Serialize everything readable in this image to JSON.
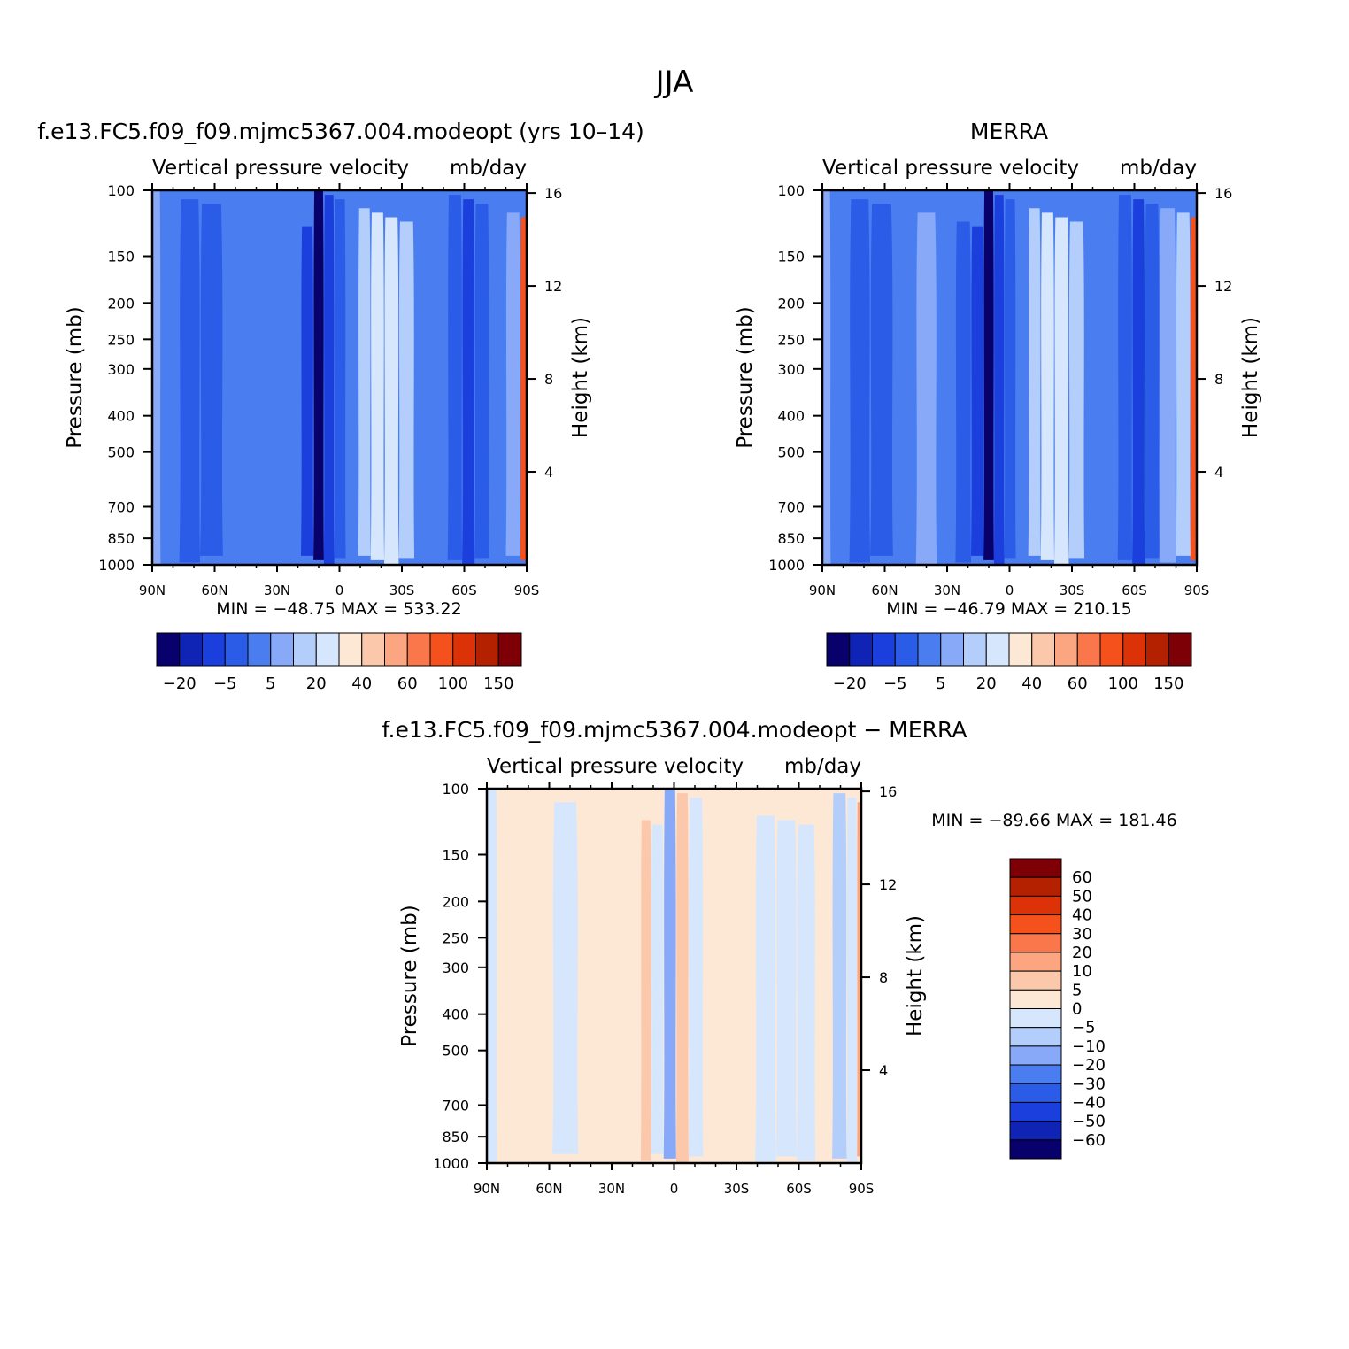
{
  "page_title": "JJA",
  "palettes": {
    "abs": [
      "#08006b",
      "#0f23b4",
      "#1a3fdc",
      "#2a5ce8",
      "#4a7ef0",
      "#87a9f7",
      "#b3cefa",
      "#d6e7fd",
      "#fde8d6",
      "#fcc8ac",
      "#fba680",
      "#f9774a",
      "#f4511d",
      "#db3208",
      "#b42100",
      "#7d0006"
    ],
    "diff": [
      "#08006b",
      "#0f23b4",
      "#1a3fdc",
      "#2a5ce8",
      "#4a7ef0",
      "#87a9f7",
      "#b3cefa",
      "#d6e7fd",
      "#fde8d6",
      "#fcc8ac",
      "#fba680",
      "#f9774a",
      "#f4511d",
      "#db3208",
      "#b42100",
      "#7d0006"
    ]
  },
  "chart_data": [
    {
      "type": "heatmap",
      "title": "f.e13.FC5.f09_f09.mjmc5367.004.modeopt (yrs 10–14)",
      "subtitle_left": "Vertical pressure velocity",
      "subtitle_right": "mb/day",
      "ylabel": "Pressure (mb)",
      "y2label": "Height (km)",
      "x_ticks": [
        "90N",
        "60N",
        "30N",
        "0",
        "30S",
        "60S",
        "90S"
      ],
      "y_ticks": [
        "100",
        "150",
        "200",
        "250",
        "300",
        "400",
        "500",
        "700",
        "850",
        "1000"
      ],
      "y2_ticks": [
        "16",
        "12",
        "8",
        "4"
      ],
      "min_max": "MIN = −48.75   MAX = 533.22",
      "colorbar_labels": [
        "−20",
        "−5",
        "5",
        "20",
        "40",
        "60",
        "100",
        "150"
      ],
      "bands": [
        {
          "lat": 90,
          "level": 5
        },
        {
          "lat": 82,
          "level": 4
        },
        {
          "lat": 72,
          "level": 3
        },
        {
          "lat": 62,
          "level": 3
        },
        {
          "lat": 50,
          "level": 4
        },
        {
          "lat": 40,
          "level": 4
        },
        {
          "lat": 30,
          "level": 4
        },
        {
          "lat": 22,
          "level": 4
        },
        {
          "lat": 15,
          "level": 2
        },
        {
          "lat": 10,
          "level": 0
        },
        {
          "lat": 5,
          "level": 2
        },
        {
          "lat": 0,
          "level": 3
        },
        {
          "lat": -6,
          "level": 4
        },
        {
          "lat": -12,
          "level": 6
        },
        {
          "lat": -18,
          "level": 7
        },
        {
          "lat": -25,
          "level": 7
        },
        {
          "lat": -32,
          "level": 6
        },
        {
          "lat": -40,
          "level": 4
        },
        {
          "lat": -48,
          "level": 4
        },
        {
          "lat": -56,
          "level": 3
        },
        {
          "lat": -62,
          "level": 2
        },
        {
          "lat": -68,
          "level": 3
        },
        {
          "lat": -76,
          "level": 4
        },
        {
          "lat": -84,
          "level": 5
        },
        {
          "lat": -90,
          "level": 12
        }
      ]
    },
    {
      "type": "heatmap",
      "title": "MERRA",
      "subtitle_left": "Vertical pressure velocity",
      "subtitle_right": "mb/day",
      "ylabel": "Pressure (mb)",
      "y2label": "Height (km)",
      "x_ticks": [
        "90N",
        "60N",
        "30N",
        "0",
        "30S",
        "60S",
        "90S"
      ],
      "y_ticks": [
        "100",
        "150",
        "200",
        "250",
        "300",
        "400",
        "500",
        "700",
        "850",
        "1000"
      ],
      "y2_ticks": [
        "16",
        "12",
        "8",
        "4"
      ],
      "min_max": "MIN = −46.79   MAX = 210.15",
      "colorbar_labels": [
        "−20",
        "−5",
        "5",
        "20",
        "40",
        "60",
        "100",
        "150"
      ],
      "bands": [
        {
          "lat": 90,
          "level": 5
        },
        {
          "lat": 82,
          "level": 4
        },
        {
          "lat": 72,
          "level": 3
        },
        {
          "lat": 62,
          "level": 3
        },
        {
          "lat": 50,
          "level": 4
        },
        {
          "lat": 40,
          "level": 5
        },
        {
          "lat": 30,
          "level": 4
        },
        {
          "lat": 22,
          "level": 3
        },
        {
          "lat": 15,
          "level": 2
        },
        {
          "lat": 10,
          "level": 0
        },
        {
          "lat": 5,
          "level": 2
        },
        {
          "lat": 0,
          "level": 3
        },
        {
          "lat": -6,
          "level": 4
        },
        {
          "lat": -12,
          "level": 6
        },
        {
          "lat": -18,
          "level": 7
        },
        {
          "lat": -25,
          "level": 7
        },
        {
          "lat": -32,
          "level": 6
        },
        {
          "lat": -40,
          "level": 4
        },
        {
          "lat": -48,
          "level": 4
        },
        {
          "lat": -56,
          "level": 3
        },
        {
          "lat": -62,
          "level": 2
        },
        {
          "lat": -68,
          "level": 3
        },
        {
          "lat": -76,
          "level": 5
        },
        {
          "lat": -84,
          "level": 6
        },
        {
          "lat": -90,
          "level": 12
        }
      ]
    },
    {
      "type": "heatmap",
      "title": "f.e13.FC5.f09_f09.mjmc5367.004.modeopt − MERRA",
      "subtitle_left": "Vertical pressure velocity",
      "subtitle_right": "mb/day",
      "ylabel": "Pressure (mb)",
      "y2label": "Height (km)",
      "x_ticks": [
        "90N",
        "60N",
        "30N",
        "0",
        "30S",
        "60S",
        "90S"
      ],
      "y_ticks": [
        "100",
        "150",
        "200",
        "250",
        "300",
        "400",
        "500",
        "700",
        "850",
        "1000"
      ],
      "y2_ticks": [
        "16",
        "12",
        "8",
        "4"
      ],
      "min_max": "MIN = −89.66   MAX = 181.46",
      "colorbar_labels": [
        "60",
        "50",
        "40",
        "30",
        "20",
        "10",
        "5",
        "0",
        "−5",
        "−10",
        "−20",
        "−30",
        "−40",
        "−50",
        "−60"
      ],
      "bands": [
        {
          "lat": 90,
          "level": 7
        },
        {
          "lat": 80,
          "level": 8
        },
        {
          "lat": 65,
          "level": 8
        },
        {
          "lat": 52,
          "level": 7
        },
        {
          "lat": 40,
          "level": 8
        },
        {
          "lat": 28,
          "level": 8
        },
        {
          "lat": 18,
          "level": 8
        },
        {
          "lat": 14,
          "level": 9
        },
        {
          "lat": 8,
          "level": 7
        },
        {
          "lat": 2,
          "level": 5
        },
        {
          "lat": -4,
          "level": 9
        },
        {
          "lat": -10,
          "level": 7
        },
        {
          "lat": -18,
          "level": 8
        },
        {
          "lat": -26,
          "level": 8
        },
        {
          "lat": -34,
          "level": 8
        },
        {
          "lat": -44,
          "level": 7
        },
        {
          "lat": -54,
          "level": 7
        },
        {
          "lat": -64,
          "level": 7
        },
        {
          "lat": -72,
          "level": 8
        },
        {
          "lat": -80,
          "level": 6
        },
        {
          "lat": -86,
          "level": 7
        },
        {
          "lat": -90,
          "level": 10
        }
      ]
    }
  ]
}
